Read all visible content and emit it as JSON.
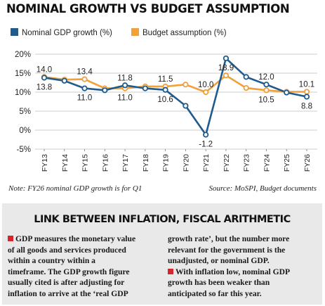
{
  "title": "NOMINAL GROWTH VS BUDGET ASSUMPTION",
  "colors": {
    "nominal": "#1f5b8e",
    "budget": "#f1a03a",
    "bullet": "#d6262b",
    "box_bg": "#e9e9e9"
  },
  "chart_data": {
    "type": "line",
    "x": [
      "FY13",
      "FY14",
      "FY15",
      "FY16",
      "FY17",
      "FY18",
      "FY19",
      "FY20",
      "FY21",
      "FY22",
      "FY23",
      "FY24",
      "FY25",
      "FY26"
    ],
    "y_ticks": [
      "20%",
      "15%",
      "10%",
      "5%",
      "0%",
      "-5%"
    ],
    "ylim": [
      -5,
      20
    ],
    "grid": true,
    "legend_position": "top",
    "series": [
      {
        "name": "Nominal GDP growth (%)",
        "values": [
          13.8,
          13.0,
          11.0,
          10.5,
          11.8,
          11.0,
          10.6,
          6.4,
          -1.2,
          18.9,
          14.0,
          12.0,
          9.9,
          8.8
        ]
      },
      {
        "name": "Budget assumption (%)",
        "values": [
          14.0,
          13.3,
          13.4,
          11.0,
          11.0,
          11.5,
          11.5,
          12.0,
          10.0,
          14.4,
          11.1,
          10.5,
          10.1,
          10.1
        ]
      }
    ],
    "data_labels": [
      {
        "text": "14.0",
        "series": 1,
        "index": 0,
        "pos": "above"
      },
      {
        "text": "13.8",
        "series": 0,
        "index": 0,
        "pos": "below"
      },
      {
        "text": "13.4",
        "series": 1,
        "index": 2,
        "pos": "above"
      },
      {
        "text": "11.0",
        "series": 0,
        "index": 2,
        "pos": "below"
      },
      {
        "text": "11.8",
        "series": 0,
        "index": 4,
        "pos": "above"
      },
      {
        "text": "11.0",
        "series": 1,
        "index": 4,
        "pos": "below"
      },
      {
        "text": "11.5",
        "series": 1,
        "index": 6,
        "pos": "above"
      },
      {
        "text": "10.6",
        "series": 0,
        "index": 6,
        "pos": "below"
      },
      {
        "text": "10.0",
        "series": 1,
        "index": 8,
        "pos": "above"
      },
      {
        "text": "-1.2",
        "series": 0,
        "index": 8,
        "pos": "below"
      },
      {
        "text": "18.9",
        "series": 0,
        "index": 9,
        "pos": "below"
      },
      {
        "text": "12.0",
        "series": 0,
        "index": 11,
        "pos": "above"
      },
      {
        "text": "10.5",
        "series": 1,
        "index": 11,
        "pos": "below"
      },
      {
        "text": "10.1",
        "series": 1,
        "index": 13,
        "pos": "above"
      },
      {
        "text": "8.8",
        "series": 0,
        "index": 13,
        "pos": "below"
      }
    ]
  },
  "note": "Note: FY26 nominal GDP growth is for Q1",
  "source": "Source: MoSPI, Budget documents",
  "explainer": {
    "heading": "LINK BETWEEN INFLATION, FISCAL ARITHMETIC",
    "left_lines": [
      "GDP measures the monetary value",
      "of all goods and services produced",
      "within a country within a",
      "timeframe. The GDP growth figure",
      "usually cited is after adjusting for",
      "inflation to arrive at the ‘real GDP"
    ],
    "right_lines": [
      "growth rate’, but the number more",
      "relevant for the government is the",
      "unadjusted, or nominal GDP.",
      "With inflation low, nominal GDP",
      "growth has been weaker than",
      "anticipated so far this year."
    ]
  }
}
